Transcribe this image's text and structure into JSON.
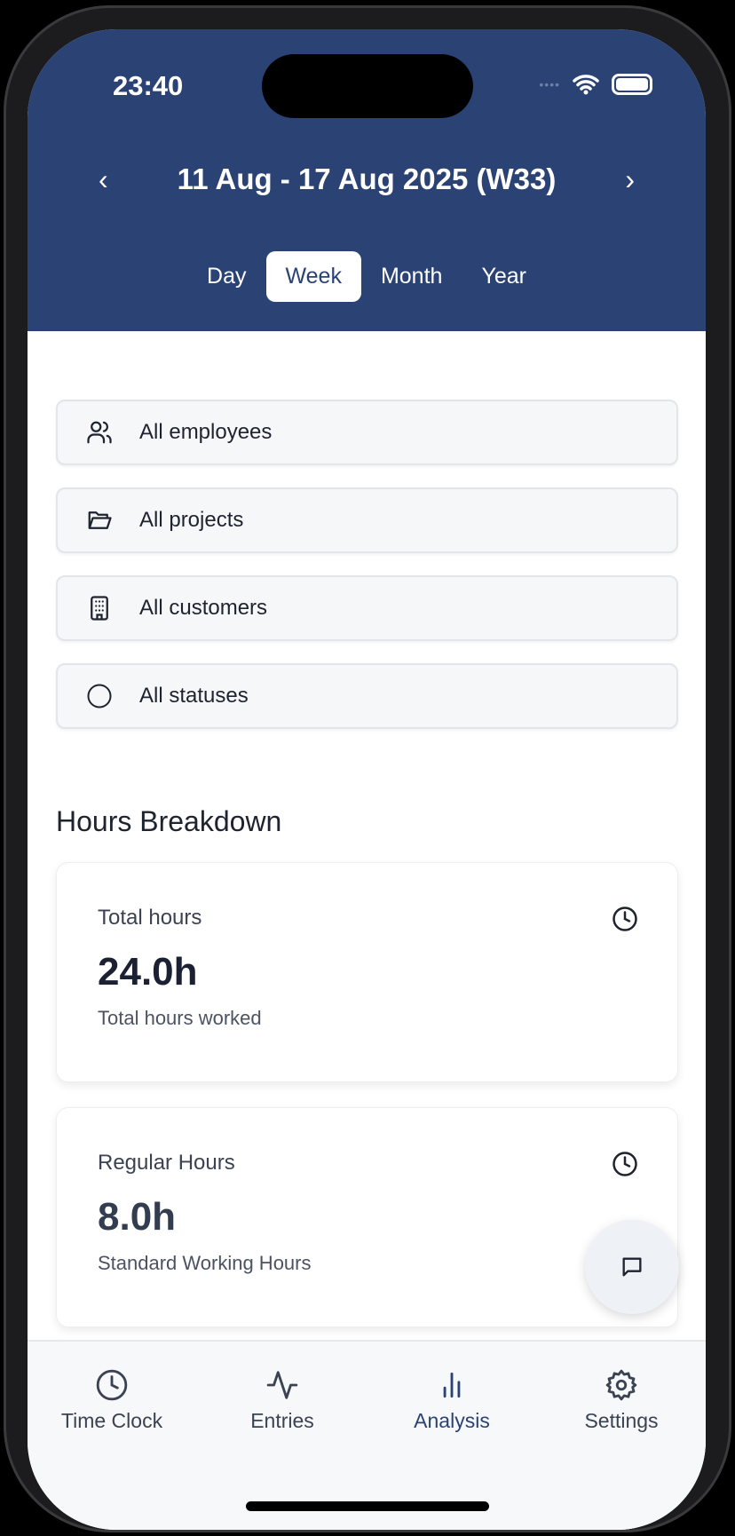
{
  "status_bar": {
    "time": "23:40"
  },
  "header": {
    "date_range": "11 Aug - 17 Aug 2025 (W33)",
    "prev": "‹",
    "next": "›",
    "tabs": [
      {
        "label": "Day"
      },
      {
        "label": "Week",
        "active": true
      },
      {
        "label": "Month"
      },
      {
        "label": "Year"
      }
    ]
  },
  "filters": [
    {
      "label": "All employees",
      "icon": "users-icon"
    },
    {
      "label": "All projects",
      "icon": "folder-icon"
    },
    {
      "label": "All customers",
      "icon": "building-icon"
    },
    {
      "label": "All statuses",
      "icon": "circle-icon"
    }
  ],
  "section_title": "Hours Breakdown",
  "cards": [
    {
      "title": "Total hours",
      "value": "24.0h",
      "subtitle": "Total hours worked"
    },
    {
      "title": "Regular Hours",
      "value": "8.0h",
      "subtitle": "Standard Working Hours"
    }
  ],
  "bottom_nav": [
    {
      "label": "Time Clock",
      "icon": "clock-icon"
    },
    {
      "label": "Entries",
      "icon": "activity-icon"
    },
    {
      "label": "Analysis",
      "icon": "bar-chart-icon",
      "active": true
    },
    {
      "label": "Settings",
      "icon": "gear-icon"
    }
  ],
  "colors": {
    "header": "#2b4275",
    "accent": "#2b4275"
  }
}
